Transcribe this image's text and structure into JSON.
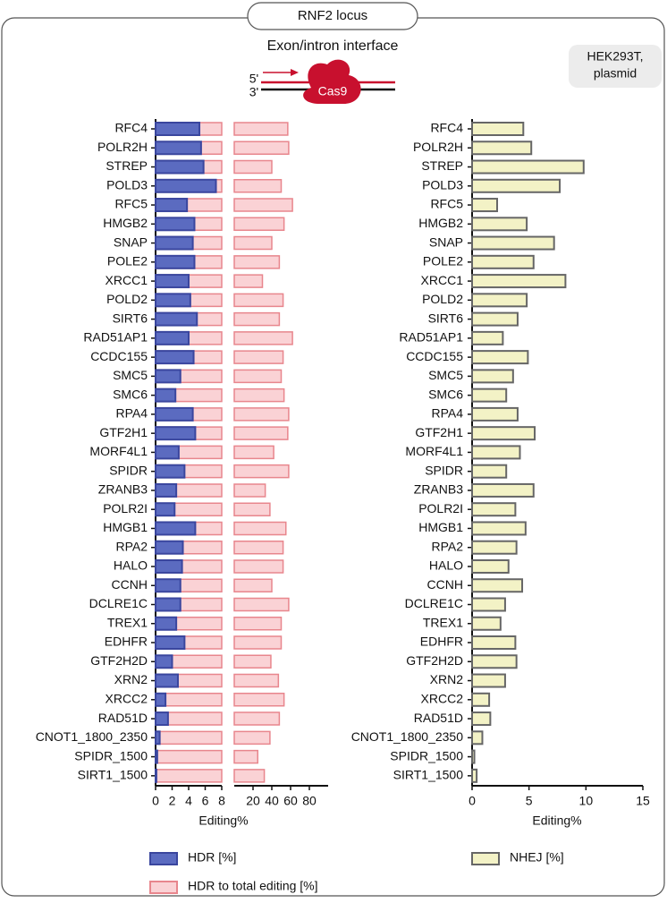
{
  "header": {
    "title": "RNF2 locus",
    "subtitle": "Exon/intron interface",
    "five_prime": "5'",
    "three_prime": "3'",
    "protein": "Cas9",
    "badge": [
      "HEK293T,",
      "plasmid"
    ]
  },
  "chart_data": [
    {
      "type": "hbar",
      "xlabel": "Editing%",
      "categories": [
        "RFC4",
        "POLR2H",
        "STREP",
        "POLD3",
        "RFC5",
        "HMGB2",
        "SNAP",
        "POLE2",
        "XRCC1",
        "POLD2",
        "SIRT6",
        "RAD51AP1",
        "CCDC155",
        "SMC5",
        "SMC6",
        "RPA4",
        "GTF2H1",
        "MORF4L1",
        "SPIDR",
        "ZRANB3",
        "POLR2I",
        "HMGB1",
        "RPA2",
        "HALO",
        "CCNH",
        "DCLRE1C",
        "TREX1",
        "EDHFR",
        "GTF2H2D",
        "XRN2",
        "XRCC2",
        "RAD51D",
        "CNOT1_1800_2350",
        "SPIDR_1500",
        "SIRT1_1500"
      ],
      "xlim": [
        0,
        8
      ],
      "xticks": [
        0,
        2,
        4,
        6,
        8
      ],
      "x2lim": [
        0,
        100
      ],
      "x2ticks": [
        20,
        40,
        60,
        80
      ],
      "series": [
        {
          "name": "HDR [%]",
          "color": "#5b6bc0",
          "edge": "#3a469e",
          "axis": "x",
          "values": [
            5.3,
            5.5,
            5.8,
            7.3,
            3.8,
            4.7,
            4.5,
            4.7,
            4.0,
            4.2,
            5.0,
            4.0,
            4.6,
            3.0,
            2.4,
            4.5,
            4.8,
            2.8,
            3.5,
            2.5,
            2.3,
            4.8,
            3.3,
            3.2,
            3.0,
            3.0,
            2.5,
            3.5,
            2.0,
            2.7,
            1.2,
            1.5,
            0.5,
            0.2,
            0.1
          ]
        },
        {
          "name": "HDR to total editing [%]",
          "color": "#fad2d5",
          "edge": "#e8868d",
          "axis": "x2",
          "values": [
            57,
            58,
            40,
            50,
            62,
            53,
            40,
            48,
            30,
            52,
            48,
            62,
            52,
            50,
            53,
            58,
            57,
            42,
            58,
            33,
            38,
            55,
            52,
            52,
            40,
            58,
            50,
            50,
            39,
            47,
            53,
            48,
            38,
            25,
            32
          ]
        }
      ]
    },
    {
      "type": "hbar",
      "xlabel": "Editing%",
      "categories": [
        "RFC4",
        "POLR2H",
        "STREP",
        "POLD3",
        "RFC5",
        "HMGB2",
        "SNAP",
        "POLE2",
        "XRCC1",
        "POLD2",
        "SIRT6",
        "RAD51AP1",
        "CCDC155",
        "SMC5",
        "SMC6",
        "RPA4",
        "GTF2H1",
        "MORF4L1",
        "SPIDR",
        "ZRANB3",
        "POLR2I",
        "HMGB1",
        "RPA2",
        "HALO",
        "CCNH",
        "DCLRE1C",
        "TREX1",
        "EDHFR",
        "GTF2H2D",
        "XRN2",
        "XRCC2",
        "RAD51D",
        "CNOT1_1800_2350",
        "SPIDR_1500",
        "SIRT1_1500"
      ],
      "xlim": [
        0,
        15
      ],
      "xticks": [
        0,
        5,
        10,
        15
      ],
      "series": [
        {
          "name": "NHEJ [%]",
          "color": "#f3f2c6",
          "edge": "#666666",
          "axis": "x",
          "values": [
            4.5,
            5.2,
            9.8,
            7.7,
            2.2,
            4.8,
            7.2,
            5.4,
            8.2,
            4.8,
            4.0,
            2.7,
            4.9,
            3.6,
            3.0,
            4.0,
            5.5,
            4.2,
            3.0,
            5.4,
            3.8,
            4.7,
            3.9,
            3.2,
            4.4,
            2.9,
            2.5,
            3.8,
            3.9,
            2.9,
            1.5,
            1.6,
            0.9,
            0.2,
            0.4
          ]
        }
      ]
    }
  ]
}
